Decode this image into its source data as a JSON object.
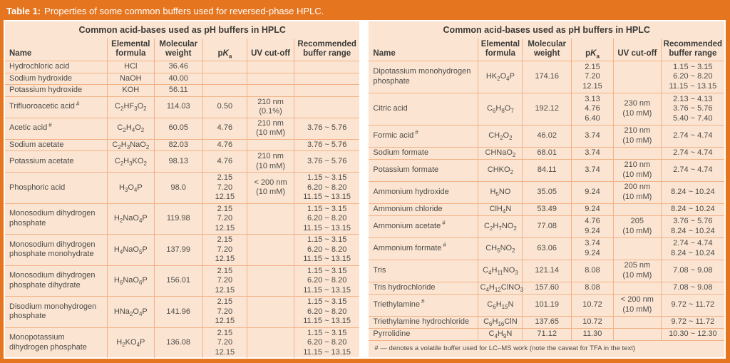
{
  "title_bar": {
    "label": "Table 1:",
    "text": "Properties of some common buffers used for reversed-phase HPLC."
  },
  "colors": {
    "frame_orange": "#E6751F",
    "panel_peach": "#FBE5D2",
    "grid_line": "#F2B287",
    "text": "#4D4B48",
    "gutter_white": "#FFFFFF",
    "title_text": "#FFFFFF"
  },
  "columns": {
    "name": "Name",
    "formula": "Elemental\nformula",
    "mw": "Molecular\nweight",
    "pka_p": "p",
    "pka_k": "K",
    "pka_sub": "a",
    "uv": "UV cut-off",
    "range": "Recommended\nbuffer range"
  },
  "tables": [
    {
      "title": "Common acid-bases used as pH buffers in HPLC",
      "rows": [
        {
          "name": "Hydrochloric acid",
          "formula": "HCl",
          "mw": "36.46",
          "pka": "",
          "uv": "",
          "range": ""
        },
        {
          "name": "Sodium hydroxide",
          "formula": "NaOH",
          "mw": "40.00",
          "pka": "",
          "uv": "",
          "range": ""
        },
        {
          "name": "Potassium hydroxide",
          "formula": "KOH",
          "mw": "56.11",
          "pka": "",
          "uv": "",
          "range": ""
        },
        {
          "name": "Trifluoroacetic acid",
          "marker": "#",
          "formula": "C2HF3O2",
          "mw": "114.03",
          "pka": "0.50",
          "uv": "210 nm\n(0.1%)",
          "range": ""
        },
        {
          "name": "Acetic acid",
          "marker": "#",
          "formula": "C2H4O2",
          "mw": "60.05",
          "pka": "4.76",
          "uv": "210 nm\n(10 mM)",
          "range": "3.76 ~ 5.76"
        },
        {
          "name": "Sodium acetate",
          "formula": "C2H3NaO2",
          "mw": "82.03",
          "pka": "4.76",
          "uv": "",
          "range": "3.76 ~ 5.76"
        },
        {
          "name": "Potassium acetate",
          "formula": "C2H3KO2",
          "mw": "98.13",
          "pka": "4.76",
          "uv": "210 nm\n(10 mM)",
          "range": "3.76 ~ 5.76"
        },
        {
          "name": "Phosphoric acid",
          "formula": "H3O4P",
          "mw": "98.0",
          "pka": "2.15\n7.20\n12.15",
          "uv": "< 200 nm\n(10 mM)",
          "range": "1.15 ~ 3.15\n6.20 ~ 8.20\n11.15 ~ 13.15"
        },
        {
          "name": "Monosodium dihydrogen phosphate",
          "formula": "H2NaO4P",
          "mw": "119.98",
          "pka": "2.15\n7.20\n12.15",
          "uv": "",
          "range": "1.15 ~ 3.15\n6.20 ~ 8.20\n11.15 ~ 13.15"
        },
        {
          "name": "Monosodium dihydrogen phosphate monohydrate",
          "formula": "H4NaO5P",
          "mw": "137.99",
          "pka": "2.15\n7.20\n12.15",
          "uv": "",
          "range": "1.15 ~ 3.15\n6.20 ~ 8.20\n11.15 ~ 13.15"
        },
        {
          "name": "Monosodium dihydrogen phosphate dihydrate",
          "formula": "H6NaO6P",
          "mw": "156.01",
          "pka": "2.15\n7.20\n12.15",
          "uv": "",
          "range": "1.15 ~ 3.15\n6.20 ~ 8.20\n11.15 ~ 13.15"
        },
        {
          "name": "Disodium monohydrogen phosphate",
          "formula": "HNa2O4P",
          "mw": "141.96",
          "pka": "2.15\n7.20\n12.15",
          "uv": "",
          "range": "1.15 ~ 3.15\n6.20 ~ 8.20\n11.15 ~ 13.15"
        },
        {
          "name": "Monopotassium dihydrogen phosphate",
          "formula": "H2KO4P",
          "mw": "136.08",
          "pka": "2.15\n7.20\n12.15",
          "uv": "",
          "range": "1.15 ~ 3.15\n6.20 ~ 8.20\n11.15 ~ 13.15"
        }
      ]
    },
    {
      "title": "Common acid-bases used as pH buffers in HPLC",
      "rows": [
        {
          "name": "Dipotassium monohydrogen phosphate",
          "formula": "HK2O4P",
          "mw": "174.16",
          "pka": "2.15\n7.20\n12.15",
          "uv": "",
          "range": "1.15 ~ 3.15\n6.20 ~ 8.20\n11.15 ~ 13.15"
        },
        {
          "name": "Citric acid",
          "formula": "C6H8O7",
          "mw": "192.12",
          "pka": "3.13\n4.76\n6.40",
          "uv": "230 nm\n(10 mM)",
          "range": "2.13 ~ 4.13\n3.76 ~ 5.76\n5.40 ~ 7.40"
        },
        {
          "name": "Formic acid",
          "marker": "#",
          "formula": "CH2O2",
          "mw": "46.02",
          "pka": "3.74",
          "uv": "210 nm\n(10 mM)",
          "range": "2.74 ~ 4.74"
        },
        {
          "name": "Sodium formate",
          "formula": "CHNaO2",
          "mw": "68.01",
          "pka": "3.74",
          "uv": "",
          "range": "2.74 ~ 4.74"
        },
        {
          "name": "Potassium formate",
          "formula": "CHKO2",
          "mw": "84.11",
          "pka": "3.74",
          "uv": "210 nm\n(10 mM)",
          "range": "2.74 ~ 4.74"
        },
        {
          "name": "Ammonium hydroxide",
          "formula": "H5NO",
          "mw": "35.05",
          "pka": "9.24",
          "uv": "200 nm\n(10 mM)",
          "range": "8.24 ~ 10.24"
        },
        {
          "name": "Ammonium chloride",
          "formula": "ClH4N",
          "mw": "53.49",
          "pka": "9.24",
          "uv": "",
          "range": "8.24 ~ 10.24"
        },
        {
          "name": "Ammonium acetate",
          "marker": "#",
          "formula": "C2H7NO2",
          "mw": "77.08",
          "pka": "4.76\n9.24",
          "uv": "205\n(10 mM)",
          "range": "3.76 ~ 5.76\n8.24 ~ 10.24"
        },
        {
          "name": "Ammonium formate",
          "marker": "#",
          "formula": "CH5NO2",
          "mw": "63.06",
          "pka": "3.74\n9.24",
          "uv": "",
          "range": "2.74 ~ 4.74\n8.24 ~ 10.24"
        },
        {
          "name": "Tris",
          "formula": "C4H11NO3",
          "mw": "121.14",
          "pka": "8.08",
          "uv": "205 nm\n(10 mM)",
          "range": "7.08 ~ 9.08"
        },
        {
          "name": "Tris hydrochloride",
          "formula": "C4H12ClNO3",
          "mw": "157.60",
          "pka": "8.08",
          "uv": "",
          "range": "7.08 ~ 9.08"
        },
        {
          "name": "Triethylamine",
          "marker": "#",
          "formula": "C6H15N",
          "mw": "101.19",
          "pka": "10.72",
          "uv": "< 200 nm\n(10 mM)",
          "range": "9.72 ~ 11.72"
        },
        {
          "name": "Triethylamine hydrochloride",
          "formula": "C6H16ClN",
          "mw": "137.65",
          "pka": "10.72",
          "uv": "",
          "range": "9.72 ~ 11.72"
        },
        {
          "name": "Pyrrolidine",
          "formula": "C4H9N",
          "mw": "71.12",
          "pka": "11.30",
          "uv": "",
          "range": "10.30 ~ 12.30"
        }
      ]
    }
  ],
  "footnote": "# — denotes a volatile buffer used for LC–MS work (note the caveat for TFA in the text)"
}
